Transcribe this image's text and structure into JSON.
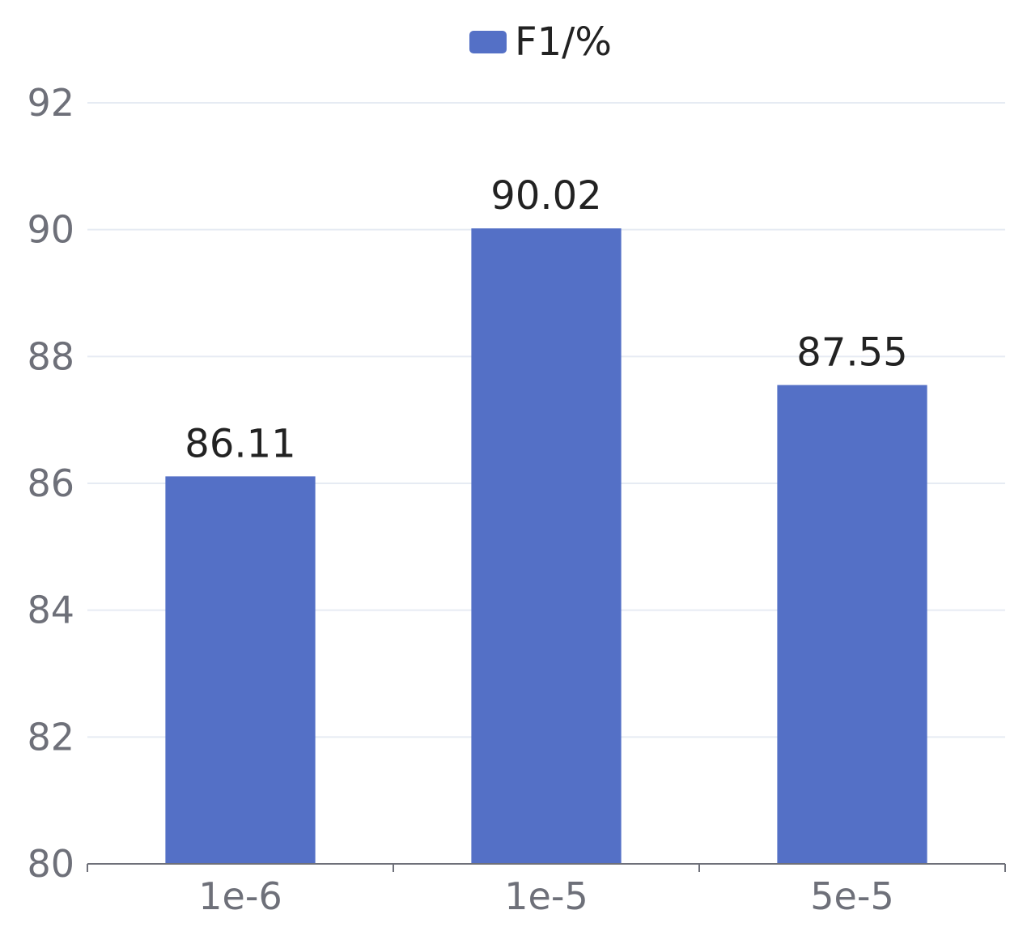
{
  "chart_data": {
    "type": "bar",
    "categories": [
      "1e-6",
      "1e-5",
      "5e-5"
    ],
    "series": [
      {
        "name": "F1/%",
        "values": [
          86.11,
          90.02,
          87.55
        ],
        "color": "#5470c6"
      }
    ],
    "data_labels": [
      "86.11",
      "90.02",
      "87.55"
    ],
    "ylim": [
      80,
      92
    ],
    "y_ticks": [
      80,
      82,
      84,
      86,
      88,
      90,
      92
    ],
    "y_tick_labels": [
      "80",
      "82",
      "84",
      "86",
      "88",
      "90",
      "92"
    ],
    "grid": true,
    "legend_position": "top-center",
    "title": "",
    "xlabel": "",
    "ylabel": ""
  }
}
